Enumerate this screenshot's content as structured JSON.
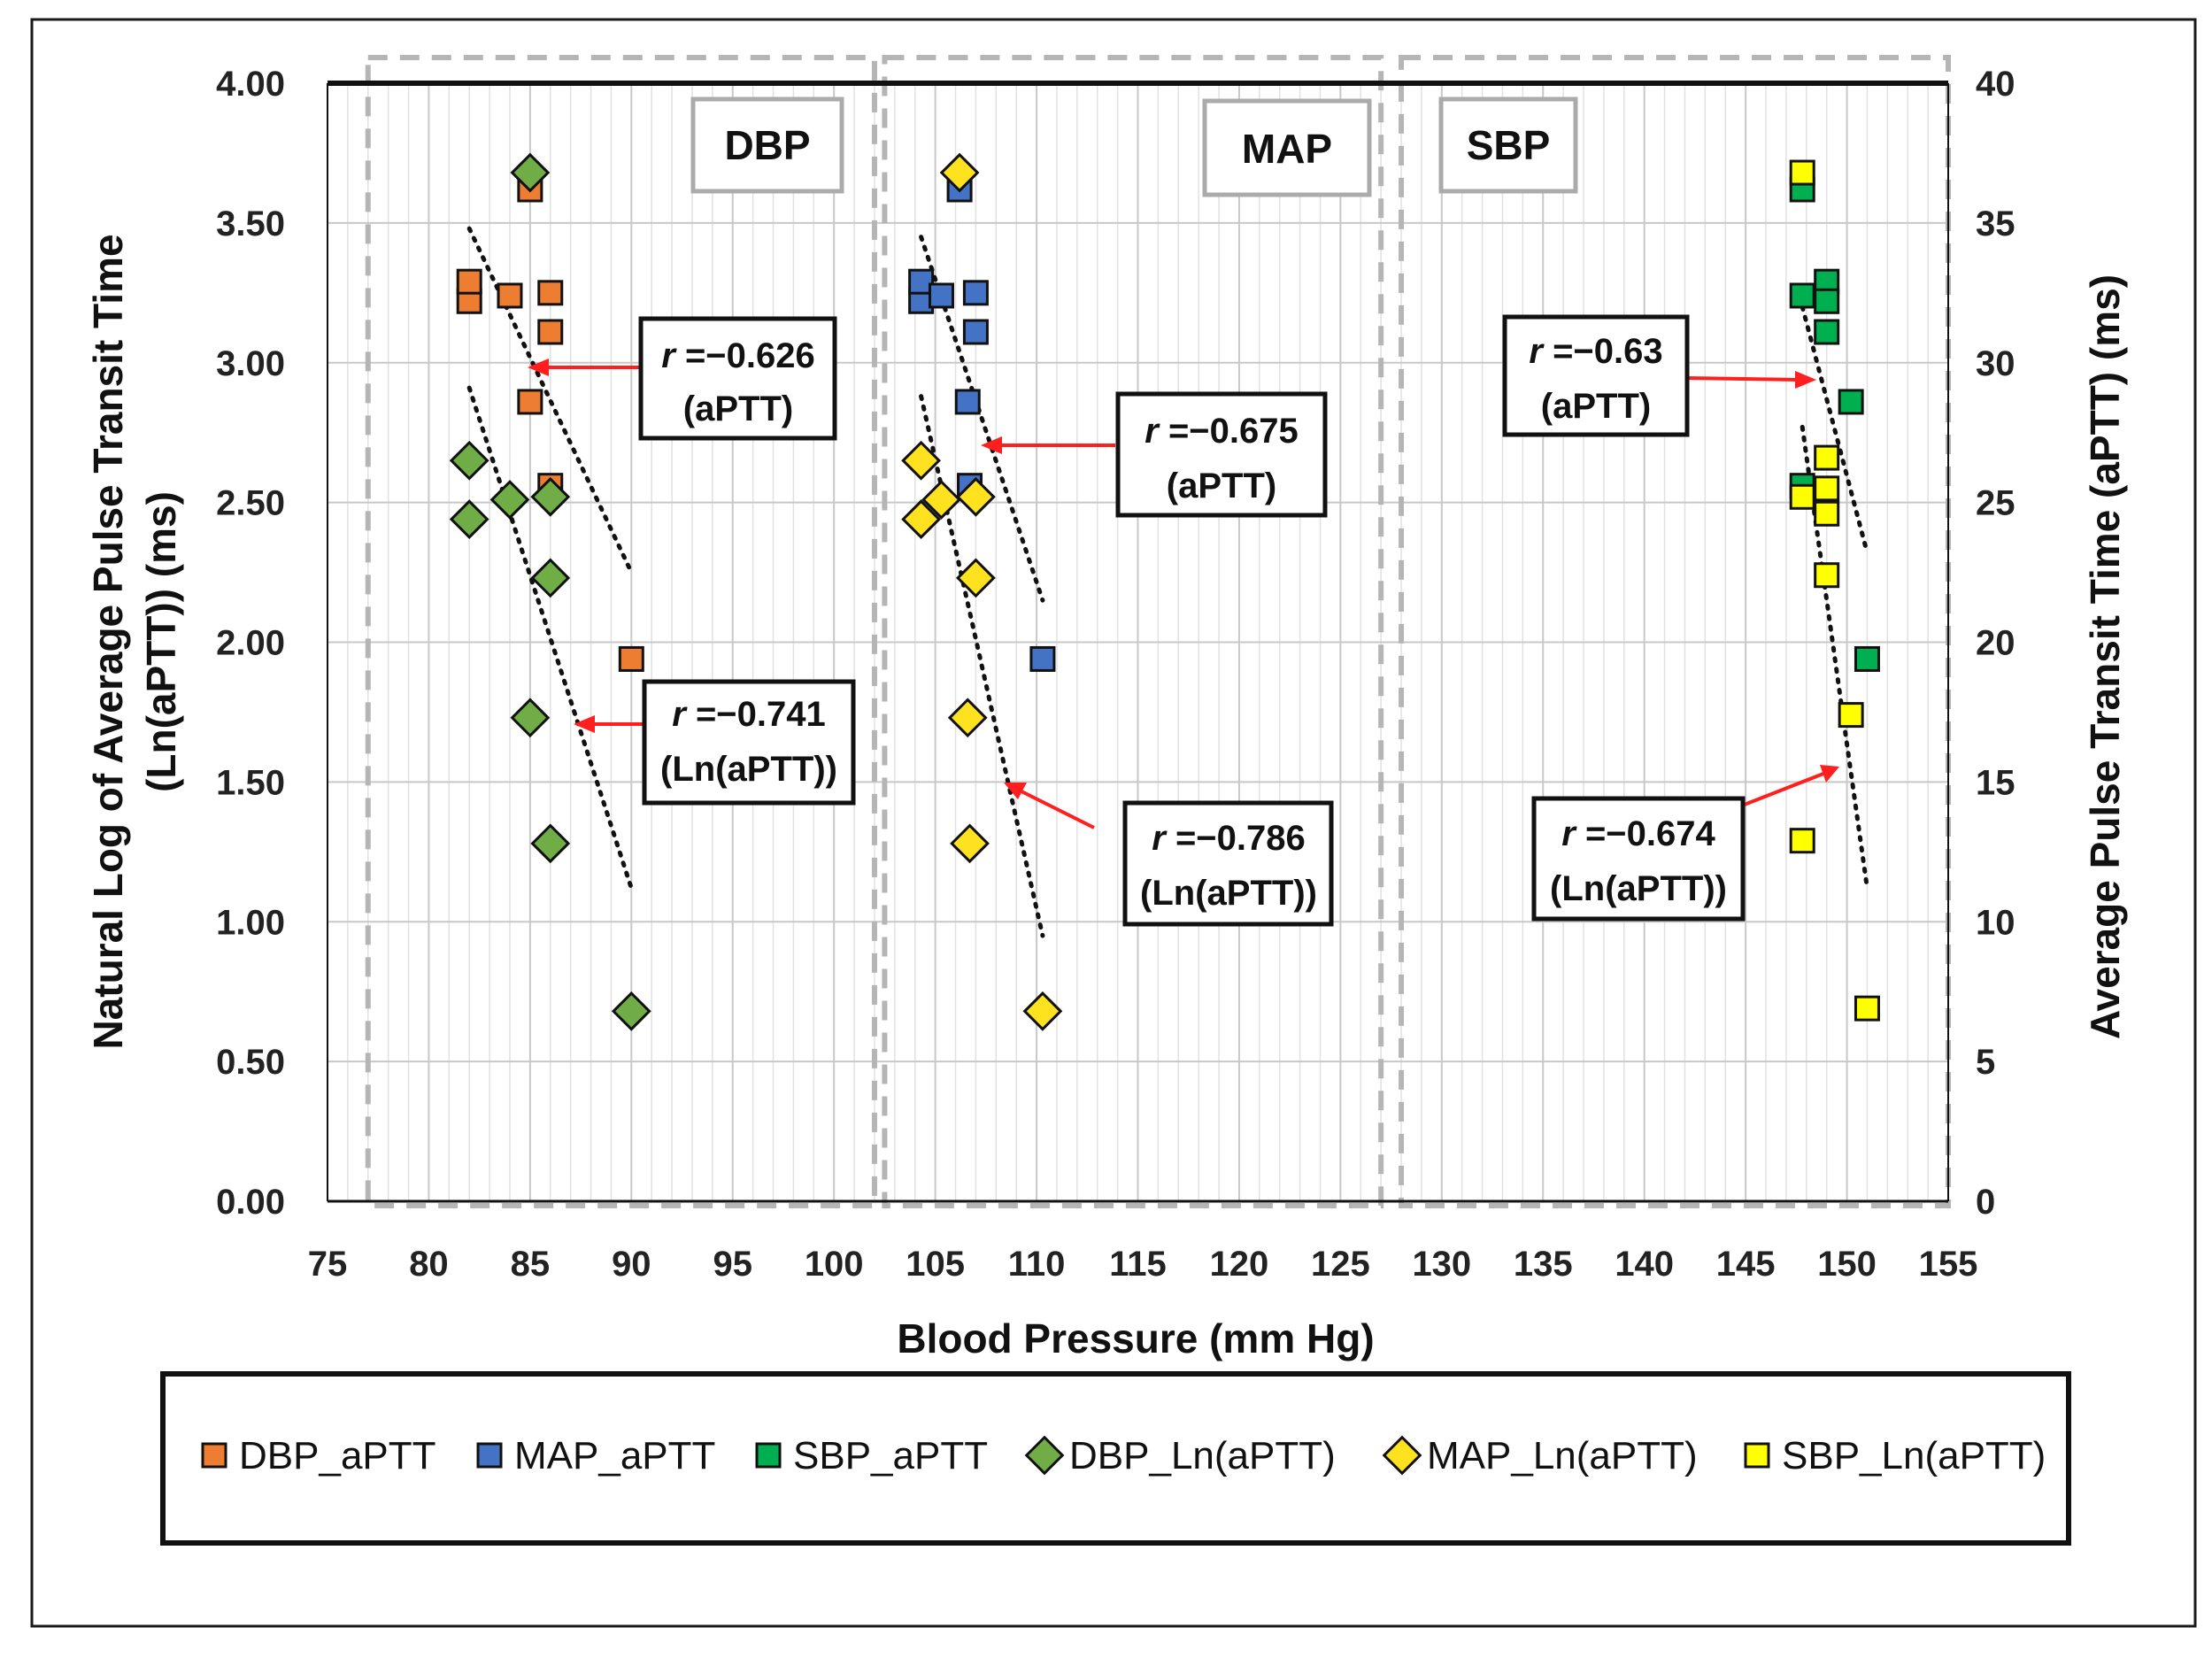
{
  "chart_data": {
    "type": "scatter",
    "xlabel": "Blood Pressure (mm Hg)",
    "ylabel_left_line1": "Natural Log of  Average Pulse Transit Time",
    "ylabel_left_line2": "(Ln(aPTT))  (ms)",
    "ylabel_right": "Average Pulse Transit Time (aPTT) (ms)",
    "xlim": [
      75,
      155
    ],
    "ylim_left": [
      0,
      4
    ],
    "ylim_right": [
      0,
      40
    ],
    "x_ticks": [
      "75",
      "80",
      "85",
      "90",
      "95",
      "100",
      "105",
      "110",
      "115",
      "120",
      "125",
      "130",
      "135",
      "140",
      "145",
      "150",
      "155"
    ],
    "y_left_ticks": [
      "0.00",
      "0.50",
      "1.00",
      "1.50",
      "2.00",
      "2.50",
      "3.00",
      "3.50",
      "4.00"
    ],
    "y_right_ticks": [
      "0",
      "5",
      "10",
      "15",
      "20",
      "25",
      "30",
      "35",
      "40"
    ],
    "regions": [
      {
        "label": "DBP",
        "x_range": [
          77,
          102
        ]
      },
      {
        "label": "MAP",
        "x_range": [
          102.5,
          127
        ]
      },
      {
        "label": "SBP",
        "x_range": [
          128,
          155
        ]
      }
    ],
    "series": [
      {
        "name": "DBP_aPTT",
        "axis": "right",
        "marker": "square",
        "color": "#ED7D31",
        "points": [
          [
            82,
            32.2
          ],
          [
            82,
            32.9
          ],
          [
            84,
            32.4
          ],
          [
            85,
            36.2
          ],
          [
            86,
            32.5
          ],
          [
            86,
            31.1
          ],
          [
            85,
            28.6
          ],
          [
            86,
            25.6
          ],
          [
            90,
            19.4
          ]
        ]
      },
      {
        "name": "MAP_aPTT",
        "axis": "right",
        "marker": "square",
        "color": "#4472C4",
        "points": [
          [
            104.3,
            32.2
          ],
          [
            104.3,
            32.9
          ],
          [
            105.3,
            32.4
          ],
          [
            106.2,
            36.2
          ],
          [
            107,
            32.5
          ],
          [
            107,
            31.1
          ],
          [
            106.6,
            28.6
          ],
          [
            106.7,
            25.6
          ],
          [
            110.3,
            19.4
          ]
        ]
      },
      {
        "name": "SBP_aPTT",
        "axis": "right",
        "marker": "square",
        "color": "#00B050",
        "points": [
          [
            147.8,
            36.2
          ],
          [
            147.8,
            32.4
          ],
          [
            149,
            32.9
          ],
          [
            149,
            32.2
          ],
          [
            149,
            31.1
          ],
          [
            150.2,
            28.6
          ],
          [
            147.8,
            25.6
          ],
          [
            151,
            19.4
          ]
        ]
      },
      {
        "name": "DBP_Ln(aPTT)",
        "axis": "left",
        "marker": "diamond",
        "color": "#70AD47",
        "points": [
          [
            85,
            3.68
          ],
          [
            82,
            2.65
          ],
          [
            82,
            2.44
          ],
          [
            84,
            2.51
          ],
          [
            86,
            2.52
          ],
          [
            86,
            2.23
          ],
          [
            85,
            1.73
          ],
          [
            86,
            1.28
          ],
          [
            90,
            0.68
          ]
        ]
      },
      {
        "name": "MAP_Ln(aPTT)",
        "axis": "left",
        "marker": "diamond",
        "color": "#FFE21F",
        "points": [
          [
            106.2,
            3.68
          ],
          [
            104.3,
            2.65
          ],
          [
            104.3,
            2.44
          ],
          [
            105.3,
            2.51
          ],
          [
            107,
            2.52
          ],
          [
            107,
            2.23
          ],
          [
            106.6,
            1.73
          ],
          [
            106.7,
            1.28
          ],
          [
            110.3,
            0.68
          ]
        ]
      },
      {
        "name": "SBP_Ln(aPTT)",
        "axis": "left",
        "marker": "square",
        "color": "#FFFF00",
        "points": [
          [
            147.8,
            3.68
          ],
          [
            149,
            2.66
          ],
          [
            147.8,
            2.52
          ],
          [
            149,
            2.55
          ],
          [
            149,
            2.46
          ],
          [
            149,
            2.24
          ],
          [
            150.2,
            1.74
          ],
          [
            147.8,
            1.29
          ],
          [
            151,
            0.69
          ]
        ]
      }
    ],
    "trendlines": [
      {
        "name": "DBP_aPTT trend",
        "axis": "right",
        "from": [
          82,
          34.8
        ],
        "to": [
          90,
          22.5
        ]
      },
      {
        "name": "DBP_Ln trend",
        "axis": "left",
        "from": [
          82,
          2.91
        ],
        "to": [
          90,
          1.12
        ]
      },
      {
        "name": "MAP_aPTT trend",
        "axis": "right",
        "from": [
          104.3,
          34.5
        ],
        "to": [
          110.3,
          21.5
        ]
      },
      {
        "name": "MAP_Ln trend",
        "axis": "left",
        "from": [
          104.3,
          2.88
        ],
        "to": [
          110.3,
          0.95
        ]
      },
      {
        "name": "SBP_aPTT trend",
        "axis": "right",
        "from": [
          147.8,
          32.0
        ],
        "to": [
          151,
          23.2
        ]
      },
      {
        "name": "SBP_Ln trend",
        "axis": "left",
        "from": [
          147.8,
          2.77
        ],
        "to": [
          151,
          1.12
        ]
      }
    ],
    "annotations": [
      {
        "r_symbol": "r",
        "value": "=−0.626",
        "label": "(aPTT)"
      },
      {
        "r_symbol": "r",
        "value": "=−0.741",
        "label": "(Ln(aPTT))"
      },
      {
        "r_symbol": "r",
        "value": "=−0.675",
        "label": "(aPTT)"
      },
      {
        "r_symbol": "r",
        "value": "=−0.786",
        "label": "(Ln(aPTT))"
      },
      {
        "r_symbol": "r",
        "value": "=−0.63",
        "label": "(aPTT)"
      },
      {
        "r_symbol": "r",
        "value": "=−0.674",
        "label": "(Ln(aPTT))"
      }
    ],
    "legend": [
      "DBP_aPTT",
      "MAP_aPTT",
      "SBP_aPTT",
      "DBP_Ln(aPTT)",
      "MAP_Ln(aPTT)",
      "SBP_Ln(aPTT)"
    ],
    "legend_position": "bottom",
    "grid": true
  }
}
